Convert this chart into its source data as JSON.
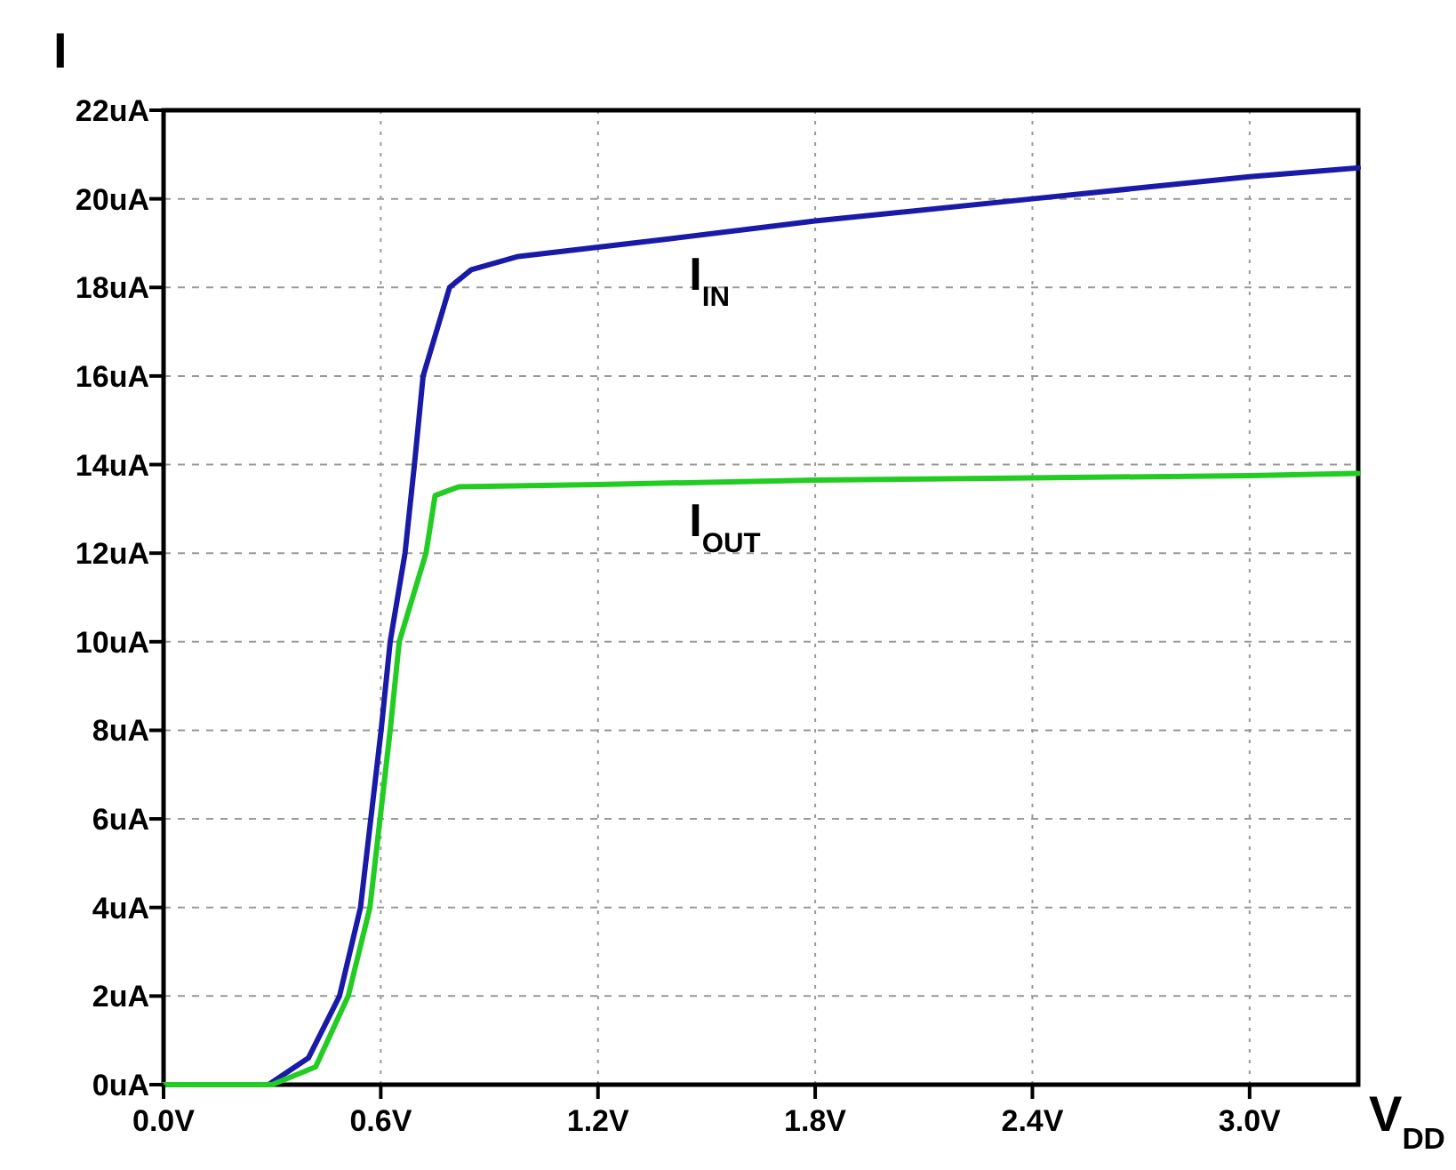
{
  "chart_data": {
    "type": "line",
    "xlabel": "V$_{DD}$",
    "ylabel": "I",
    "xlim": [
      0,
      3.3
    ],
    "ylim": [
      0,
      22
    ],
    "xticks": [
      {
        "value": 0,
        "label": "0.0V"
      },
      {
        "value": 0.6,
        "label": "0.6V"
      },
      {
        "value": 1.2,
        "label": "1.2V"
      },
      {
        "value": 1.8,
        "label": "1.8V"
      },
      {
        "value": 2.4,
        "label": "2.4V"
      },
      {
        "value": 3.0,
        "label": "3.0V"
      }
    ],
    "yticks": [
      {
        "value": 0,
        "label": "0uA"
      },
      {
        "value": 2,
        "label": "2uA"
      },
      {
        "value": 4,
        "label": "4uA"
      },
      {
        "value": 6,
        "label": "6uA"
      },
      {
        "value": 8,
        "label": "8uA"
      },
      {
        "value": 10,
        "label": "10uA"
      },
      {
        "value": 12,
        "label": "12uA"
      },
      {
        "value": 14,
        "label": "14uA"
      },
      {
        "value": 16,
        "label": "16uA"
      },
      {
        "value": 18,
        "label": "18uA"
      },
      {
        "value": 20,
        "label": "20uA"
      },
      {
        "value": 22,
        "label": "22uA"
      }
    ],
    "grid": true,
    "marker": "none",
    "line_style": "solid",
    "series": [
      {
        "name": "I$_{IN}$",
        "color": "#1a1aa8",
        "x": [
          0,
          0.29,
          0.4,
          0.486,
          0.544,
          0.601,
          0.626,
          0.667,
          0.693,
          0.717,
          0.79,
          0.85,
          0.98,
          1.4,
          1.8,
          2.4,
          3.0,
          3.3
        ],
        "values": [
          0,
          0,
          0.6,
          2,
          4,
          8,
          10,
          12,
          14,
          16,
          18,
          18.4,
          18.7,
          19.1,
          19.5,
          20,
          20.5,
          20.7
        ]
      },
      {
        "name": "I$_{OUT}$",
        "color": "#22cc22",
        "x": [
          0,
          0.3,
          0.42,
          0.51,
          0.57,
          0.626,
          0.651,
          0.725,
          0.75,
          0.816,
          1.2,
          1.8,
          2.4,
          3.0,
          3.3
        ],
        "values": [
          0,
          0,
          0.4,
          2,
          4,
          8,
          10,
          12,
          13.3,
          13.5,
          13.55,
          13.65,
          13.7,
          13.75,
          13.8
        ]
      }
    ]
  }
}
